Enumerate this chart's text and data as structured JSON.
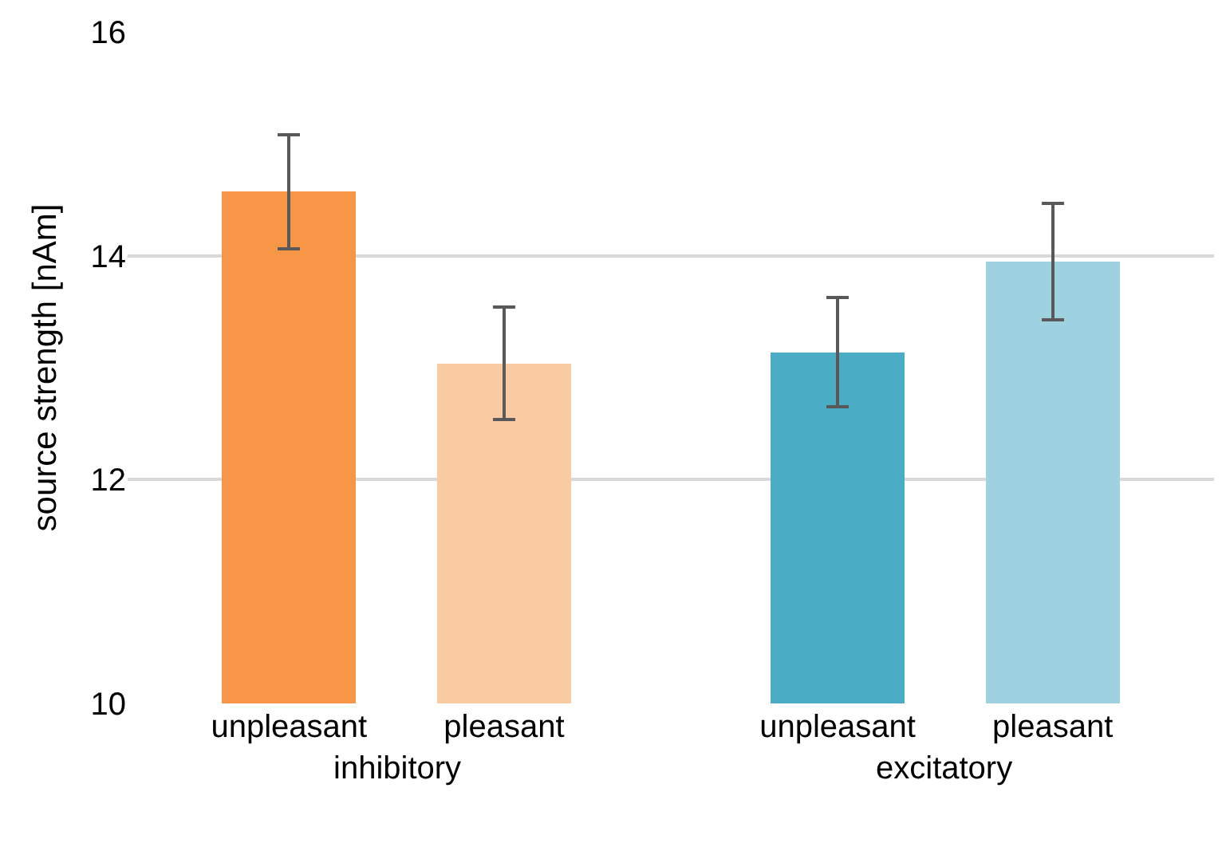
{
  "chart_data": {
    "type": "bar",
    "ylabel": "source strength [nAm]",
    "categories": [
      "unpleasant",
      "pleasant",
      "unpleasant",
      "pleasant"
    ],
    "values": [
      14.57,
      13.04,
      13.14,
      13.95
    ],
    "errors": [
      0.51,
      0.5,
      0.49,
      0.52
    ],
    "colors": [
      "#f79646",
      "#facba3",
      "#4bacc6",
      "#9fd2e1"
    ],
    "annotations": [
      "inhibitory",
      "excitatory"
    ],
    "ylim": [
      10,
      16
    ],
    "yticks": [
      10,
      12,
      14,
      16
    ],
    "grid": "y",
    "legend": false
  }
}
